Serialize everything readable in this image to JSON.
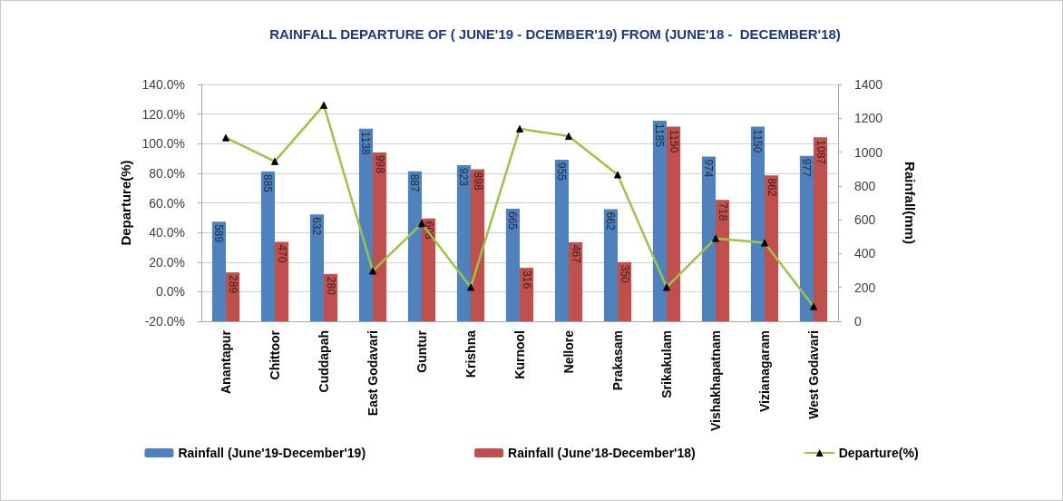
{
  "chart_data": {
    "type": "bar",
    "title": "RAINFALL DEPARTURE OF ( JUNE'19 - DCEMBER'19) FROM (JUNE'18 -  DECEMBER'18)",
    "ylabel": "Departure(%)",
    "y2label": "Rainfall(mm)",
    "categories": [
      "Anantapur",
      "Chittoor",
      "Cuddapah",
      "East Godavari",
      "Guntur",
      "Krishna",
      "Kurnool",
      "Nellore",
      "Prakasam",
      "Srikakulam",
      "Vishakhapatnam",
      "Vizianagaram",
      "West Godavari"
    ],
    "series": [
      {
        "name": "Rainfall (June'19-December'19)",
        "axis": "y2",
        "color": "#4f81bd",
        "values": [
          589,
          885,
          632,
          1138,
          887,
          923,
          665,
          955,
          662,
          1185,
          974,
          1150,
          977
        ],
        "value_labels": [
          "589",
          "885",
          "632",
          "1138",
          "887",
          "923",
          "665",
          "955",
          "662",
          "1185",
          "974",
          "1150",
          "977"
        ]
      },
      {
        "name": "Rainfall (June'18-December'18)",
        "axis": "y2",
        "color": "#c0504d",
        "values": [
          289,
          470,
          280,
          998,
          608,
          898,
          316,
          467,
          350,
          1150,
          718,
          862,
          1087
        ],
        "value_labels": [
          "289",
          "470",
          "280",
          "998",
          "608",
          "898",
          "316",
          "467",
          "350",
          "1150",
          "718",
          "862",
          "1087"
        ]
      },
      {
        "name": "Departure(%)",
        "type": "line",
        "axis": "y",
        "color": "#9bc34a",
        "marker": "triangle",
        "values": [
          104,
          88,
          126,
          14,
          46,
          3,
          110,
          105,
          79,
          3,
          36,
          33,
          -10
        ]
      }
    ],
    "ylim": [
      -20,
      140
    ],
    "yticks": [
      {
        "value": -20,
        "label": "-20.0%"
      },
      {
        "value": 0,
        "label": "0.0%"
      },
      {
        "value": 20,
        "label": "20.0%"
      },
      {
        "value": 40,
        "label": "40.0%"
      },
      {
        "value": 60,
        "label": "60.0%"
      },
      {
        "value": 80,
        "label": "80.0%"
      },
      {
        "value": 100,
        "label": "100.0%"
      },
      {
        "value": 120,
        "label": "120.0%"
      },
      {
        "value": 140,
        "label": "140.0%"
      }
    ],
    "y2lim": [
      0,
      1400
    ],
    "y2ticks": [
      0,
      200,
      400,
      600,
      800,
      1000,
      1200,
      1400
    ],
    "grid": "y",
    "legend": "bottom"
  }
}
